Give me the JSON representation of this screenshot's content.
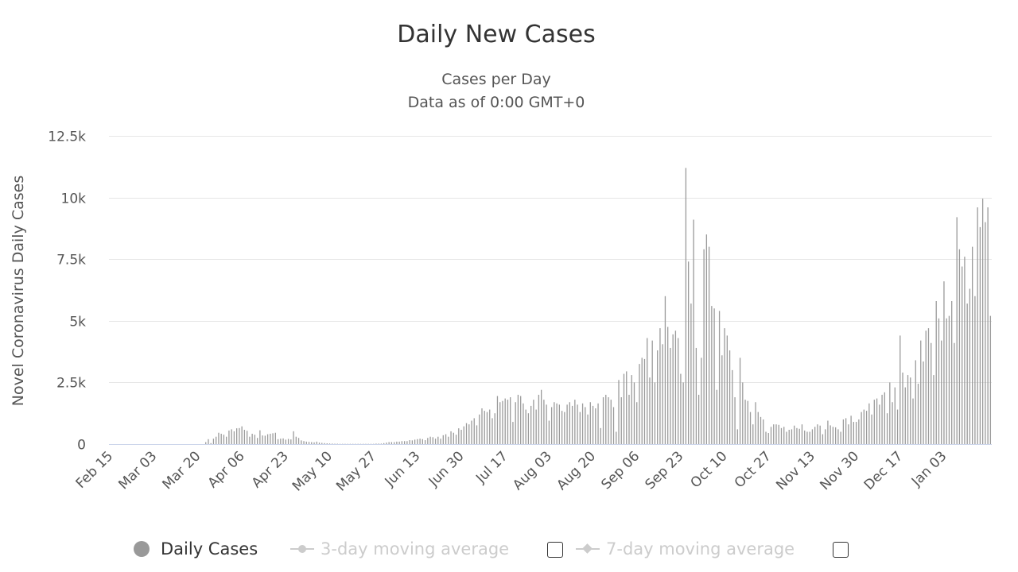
{
  "chart_data": {
    "type": "bar",
    "title": "Daily New Cases",
    "subtitle_line1": "Cases per Day",
    "subtitle_line2": "Data as of 0:00 GMT+0",
    "ylabel": "Novel Coronavirus Daily Cases",
    "xlabel": "",
    "ylim": [
      0,
      12500
    ],
    "y_ticks": [
      {
        "value": 0,
        "label": "0"
      },
      {
        "value": 2500,
        "label": "2.5k"
      },
      {
        "value": 5000,
        "label": "5k"
      },
      {
        "value": 7500,
        "label": "7.5k"
      },
      {
        "value": 10000,
        "label": "10k"
      },
      {
        "value": 12500,
        "label": "12.5k"
      }
    ],
    "x_tick_labels": [
      "Feb 15",
      "Mar 03",
      "Mar 20",
      "Apr 06",
      "Apr 23",
      "May 10",
      "May 27",
      "Jun 13",
      "Jun 30",
      "Jul 17",
      "Aug 03",
      "Aug 20",
      "Sep 06",
      "Sep 23",
      "Oct 10",
      "Oct 27",
      "Nov 13",
      "Nov 30",
      "Dec 17",
      "Jan 03"
    ],
    "x_tick_interval_days": 17,
    "first_date": "Feb 15",
    "grid": true,
    "series": [
      {
        "name": "Daily Cases",
        "color": "#999999",
        "values": [
          0,
          0,
          0,
          0,
          0,
          0,
          0,
          0,
          0,
          0,
          0,
          0,
          0,
          0,
          0,
          0,
          0,
          0,
          0,
          0,
          0,
          0,
          0,
          0,
          0,
          0,
          0,
          0,
          0,
          0,
          0,
          0,
          0,
          0,
          0,
          0,
          0,
          80,
          200,
          40,
          220,
          300,
          460,
          420,
          380,
          300,
          550,
          600,
          520,
          640,
          650,
          720,
          580,
          540,
          300,
          420,
          380,
          250,
          560,
          350,
          340,
          400,
          420,
          440,
          460,
          200,
          220,
          230,
          180,
          210,
          190,
          520,
          300,
          250,
          150,
          120,
          100,
          90,
          80,
          70,
          100,
          60,
          50,
          40,
          30,
          25,
          20,
          15,
          15,
          10,
          10,
          10,
          10,
          10,
          10,
          10,
          10,
          10,
          10,
          10,
          10,
          10,
          10,
          20,
          20,
          20,
          40,
          60,
          80,
          80,
          80,
          100,
          100,
          120,
          120,
          120,
          160,
          150,
          180,
          200,
          220,
          200,
          160,
          250,
          300,
          280,
          220,
          300,
          220,
          360,
          400,
          300,
          520,
          460,
          380,
          640,
          580,
          720,
          850,
          800,
          950,
          1050,
          760,
          1200,
          1450,
          1350,
          1300,
          1400,
          1050,
          1250,
          1950,
          1700,
          1750,
          1850,
          1800,
          1900,
          900,
          1700,
          2000,
          1950,
          1650,
          1400,
          1250,
          1550,
          1800,
          1400,
          2000,
          2200,
          1800,
          1600,
          950,
          1500,
          1700,
          1650,
          1600,
          1350,
          1300,
          1600,
          1700,
          1550,
          1800,
          1600,
          1300,
          1650,
          1500,
          1200,
          1700,
          1550,
          1450,
          1650,
          650,
          1900,
          2000,
          1900,
          1800,
          1500,
          500,
          2600,
          1900,
          2850,
          2950,
          2000,
          2800,
          2500,
          1700,
          3250,
          3500,
          3450,
          4300,
          2700,
          4200,
          2500,
          3800,
          4700,
          4050,
          6000,
          4750,
          3900,
          4450,
          4600,
          4300,
          2850,
          2500,
          11200,
          7400,
          5700,
          9100,
          3900,
          2000,
          3500,
          7900,
          8500,
          8000,
          5600,
          5500,
          2200,
          5400,
          3600,
          4700,
          4400,
          3800,
          3000,
          1900,
          600,
          3500,
          2500,
          1800,
          1750,
          1300,
          800,
          1700,
          1300,
          1100,
          1000,
          500,
          450,
          700,
          800,
          800,
          780,
          650,
          700,
          500,
          580,
          600,
          750,
          650,
          620,
          800,
          550,
          500,
          500,
          600,
          700,
          800,
          750,
          400,
          600,
          950,
          760,
          700,
          680,
          600,
          500,
          1000,
          1050,
          800,
          1150,
          900,
          900,
          1000,
          1300,
          1400,
          1350,
          1650,
          1200,
          1800,
          1850,
          1600,
          2000,
          2100,
          1250,
          2500,
          1700,
          2300,
          1400,
          4400,
          2900,
          2300,
          2800,
          2700,
          1850,
          3400,
          2450,
          4200,
          3350,
          4600,
          4700,
          4100,
          2800,
          5800,
          5100,
          4200,
          6600,
          5100,
          5200,
          5800,
          4100,
          9200,
          7900,
          7200,
          7600,
          5700,
          6300,
          8000,
          6000,
          9600,
          8800,
          9950,
          9000,
          9600,
          5200
        ]
      },
      {
        "name": "3-day moving average",
        "visible": false
      },
      {
        "name": "7-day moving average",
        "visible": false
      }
    ]
  },
  "legend": {
    "items": [
      {
        "label": "Daily Cases",
        "color": "#999999"
      },
      {
        "label": "3-day moving average",
        "color": "#cccccc"
      },
      {
        "label": "7-day moving average",
        "color": "#cccccc"
      }
    ]
  }
}
